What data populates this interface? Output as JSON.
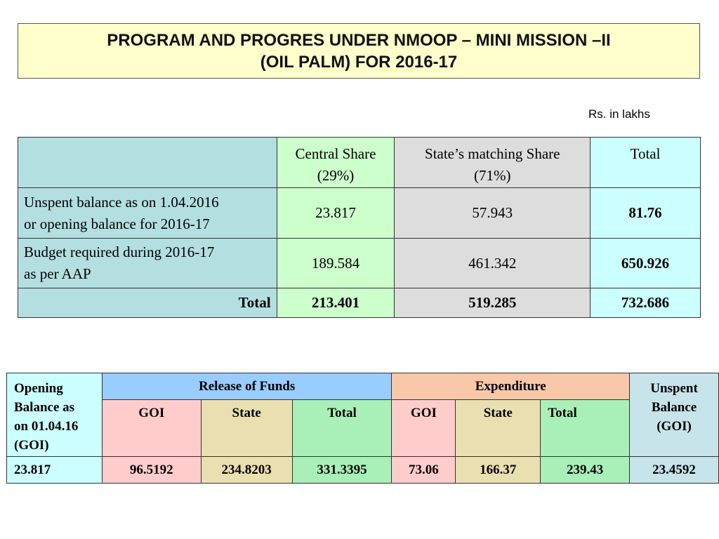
{
  "title": {
    "line1": "PROGRAM AND PROGRES UNDER NMOOP – MINI MISSION –II",
    "line2": "(OIL PALM) FOR 2016-17"
  },
  "unit_note": "Rs. in lakhs",
  "table1": {
    "headers": {
      "central_l1": "Central Share",
      "central_l2": "(29%)",
      "state_l1": "State’s matching Share",
      "state_l2": "(71%)",
      "total": "Total"
    },
    "rows": [
      {
        "label_l1": "Unspent balance as on 1.04.2016",
        "label_l2": "or opening balance for 2016-17",
        "central": "23.817",
        "state": "57.943",
        "total": "81.76"
      },
      {
        "label_l1": "Budget required during 2016-17",
        "label_l2": "as per AAP",
        "central": "189.584",
        "state": "461.342",
        "total": "650.926"
      }
    ],
    "total_row": {
      "label": "Total",
      "central": "213.401",
      "state": "519.285",
      "total": "732.686"
    }
  },
  "table2": {
    "headers": {
      "opening_l1": "Opening",
      "opening_l2": "Balance as",
      "opening_l3": "on 01.04.16",
      "opening_l4": "(GOI)",
      "release": "Release of Funds",
      "expenditure": "Expenditure",
      "unspent_l1": "Unspent",
      "unspent_l2": "Balance",
      "unspent_l3": "(GOI)",
      "goi": "GOI",
      "state": "State",
      "total": "Total"
    },
    "row": {
      "opening": "23.817",
      "release_goi": "96.5192",
      "release_state": "234.8203",
      "release_total": "331.3395",
      "exp_goi": "73.06",
      "exp_state": "166.37",
      "exp_total": "239.43",
      "unspent": "23.4592"
    }
  }
}
